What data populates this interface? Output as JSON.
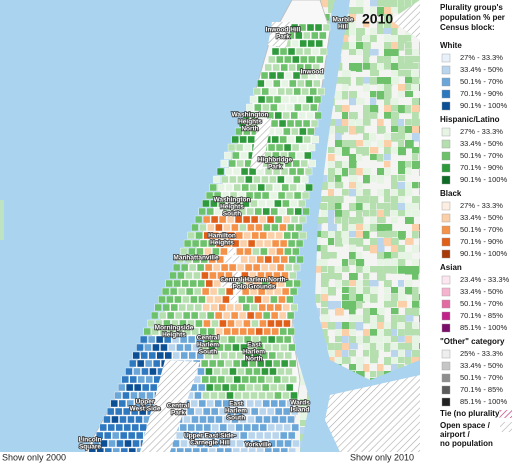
{
  "map": {
    "year": "2010",
    "labels": [
      {
        "lines": [
          "Inwood Hill",
          "Park"
        ]
      },
      {
        "lines": [
          "Marble",
          "Hill"
        ]
      },
      {
        "lines": [
          "Inwood"
        ]
      },
      {
        "lines": [
          "Washington",
          "Heights",
          "North"
        ]
      },
      {
        "lines": [
          "Highbridge",
          "Park"
        ]
      },
      {
        "lines": [
          "Washington",
          "Heights",
          "South"
        ]
      },
      {
        "lines": [
          "Hamilton",
          "Heights"
        ]
      },
      {
        "lines": [
          "Manhattanville"
        ]
      },
      {
        "lines": [
          "Central Harlem North-",
          "Polo Grounds"
        ]
      },
      {
        "lines": [
          "Morningside",
          "Heights"
        ]
      },
      {
        "lines": [
          "Central",
          "Harlem",
          "South"
        ]
      },
      {
        "lines": [
          "East",
          "Harlem",
          "North"
        ]
      },
      {
        "lines": [
          "Upper",
          "West Side"
        ]
      },
      {
        "lines": [
          "Central",
          "Park"
        ]
      },
      {
        "lines": [
          "East",
          "Harlem",
          "South"
        ]
      },
      {
        "lines": [
          "Wards",
          "Island"
        ]
      },
      {
        "lines": [
          "Lincoln",
          "Square"
        ]
      },
      {
        "lines": [
          "Upper East Side-",
          "Carnegie Hill"
        ]
      },
      {
        "lines": [
          "Yorkville"
        ]
      }
    ]
  },
  "legend": {
    "title": [
      "Plurality group's",
      "population % per",
      "Census block:"
    ],
    "groups": [
      {
        "name": "White",
        "items": [
          {
            "label": "27% - 33.3%",
            "color": "#e8f1fa"
          },
          {
            "label": "33.4% - 50%",
            "color": "#b9d5ee"
          },
          {
            "label": "50.1% - 70%",
            "color": "#6aa6d8"
          },
          {
            "label": "70.1% - 90%",
            "color": "#2e78c0"
          },
          {
            "label": "90.1% - 100%",
            "color": "#0d4f95"
          }
        ]
      },
      {
        "name": "Hispanic/Latino",
        "items": [
          {
            "label": "27% - 33.3%",
            "color": "#e6f4e4"
          },
          {
            "label": "33.4% - 50%",
            "color": "#b6dfb0"
          },
          {
            "label": "50.1% - 70%",
            "color": "#6cc16a"
          },
          {
            "label": "70.1% - 90%",
            "color": "#2e9a3c"
          },
          {
            "label": "90.1% - 100%",
            "color": "#0e6b25"
          }
        ]
      },
      {
        "name": "Black",
        "items": [
          {
            "label": "27% - 33.3%",
            "color": "#fdeee2"
          },
          {
            "label": "33.4% - 50%",
            "color": "#fbcfa8"
          },
          {
            "label": "50.1% - 70%",
            "color": "#f5924a"
          },
          {
            "label": "70.1% - 90%",
            "color": "#e0601a"
          },
          {
            "label": "90.1% - 100%",
            "color": "#a83a0a"
          }
        ]
      },
      {
        "name": "Asian",
        "items": [
          {
            "label": "23.4% - 33.3%",
            "color": "#fce6ef"
          },
          {
            "label": "33.4% - 50%",
            "color": "#f6b3cf"
          },
          {
            "label": "50.1% - 70%",
            "color": "#e46aa4"
          },
          {
            "label": "70.1% - 85%",
            "color": "#c1238a"
          },
          {
            "label": "85.1% - 100%",
            "color": "#7a0f6a"
          }
        ]
      },
      {
        "name": "\"Other\" category",
        "items": [
          {
            "label": "25% - 33.3%",
            "color": "#eeeeee"
          },
          {
            "label": "33.4% - 50%",
            "color": "#c6c6c6"
          },
          {
            "label": "50.1% - 70%",
            "color": "#8e8e8e"
          },
          {
            "label": "70.1% - 85%",
            "color": "#5a5a5a"
          },
          {
            "label": "85.1% - 100%",
            "color": "#222222"
          }
        ]
      }
    ],
    "tie": "Tie (no plurality)",
    "open_space": [
      "Open space /",
      "airport /",
      "no population"
    ]
  },
  "controls": {
    "show_2000": "Show only 2000",
    "show_2010": "Show only 2010"
  }
}
